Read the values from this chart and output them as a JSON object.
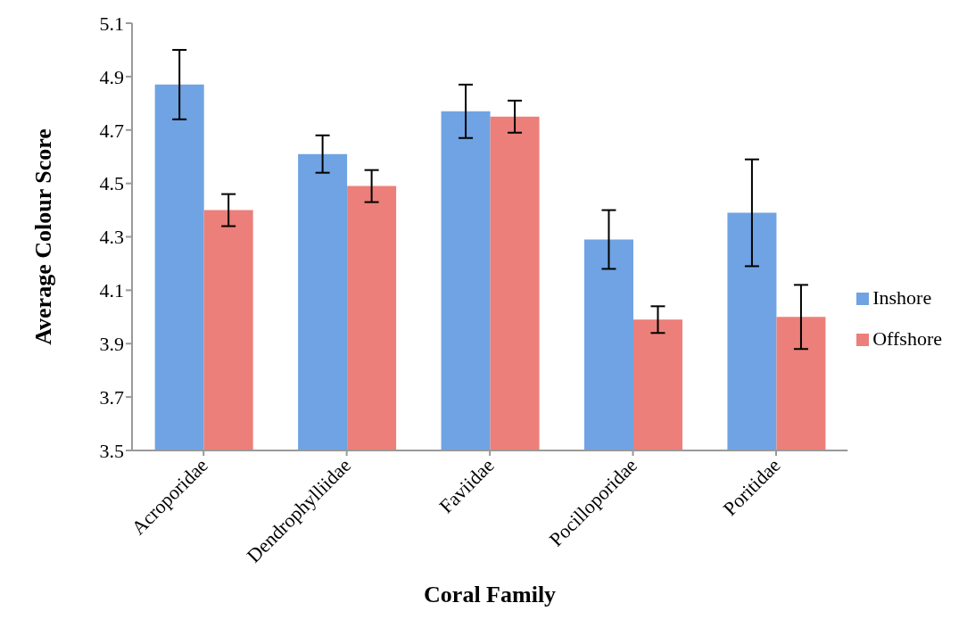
{
  "chart_data": {
    "type": "bar",
    "xlabel": "Coral Family",
    "ylabel": "Average Colour Score",
    "categories": [
      "Acroporidae",
      "Dendrophylliidae",
      "Faviidae",
      "Pocilloporidae",
      "Poritidae"
    ],
    "series": [
      {
        "name": "Inshore",
        "color": "#6fa3e3",
        "values": [
          4.87,
          4.61,
          4.77,
          4.29,
          4.39
        ],
        "errors": [
          0.13,
          0.07,
          0.1,
          0.11,
          0.2
        ]
      },
      {
        "name": "Offshore",
        "color": "#ec7f79",
        "values": [
          4.4,
          4.49,
          4.75,
          3.99,
          4.0
        ],
        "errors": [
          0.06,
          0.06,
          0.06,
          0.05,
          0.12
        ]
      }
    ],
    "ylim": [
      3.5,
      5.1
    ],
    "yticks": [
      3.5,
      3.7,
      3.9,
      4.1,
      4.3,
      4.5,
      4.7,
      4.9,
      5.1
    ],
    "grid": false,
    "legend": "right"
  }
}
